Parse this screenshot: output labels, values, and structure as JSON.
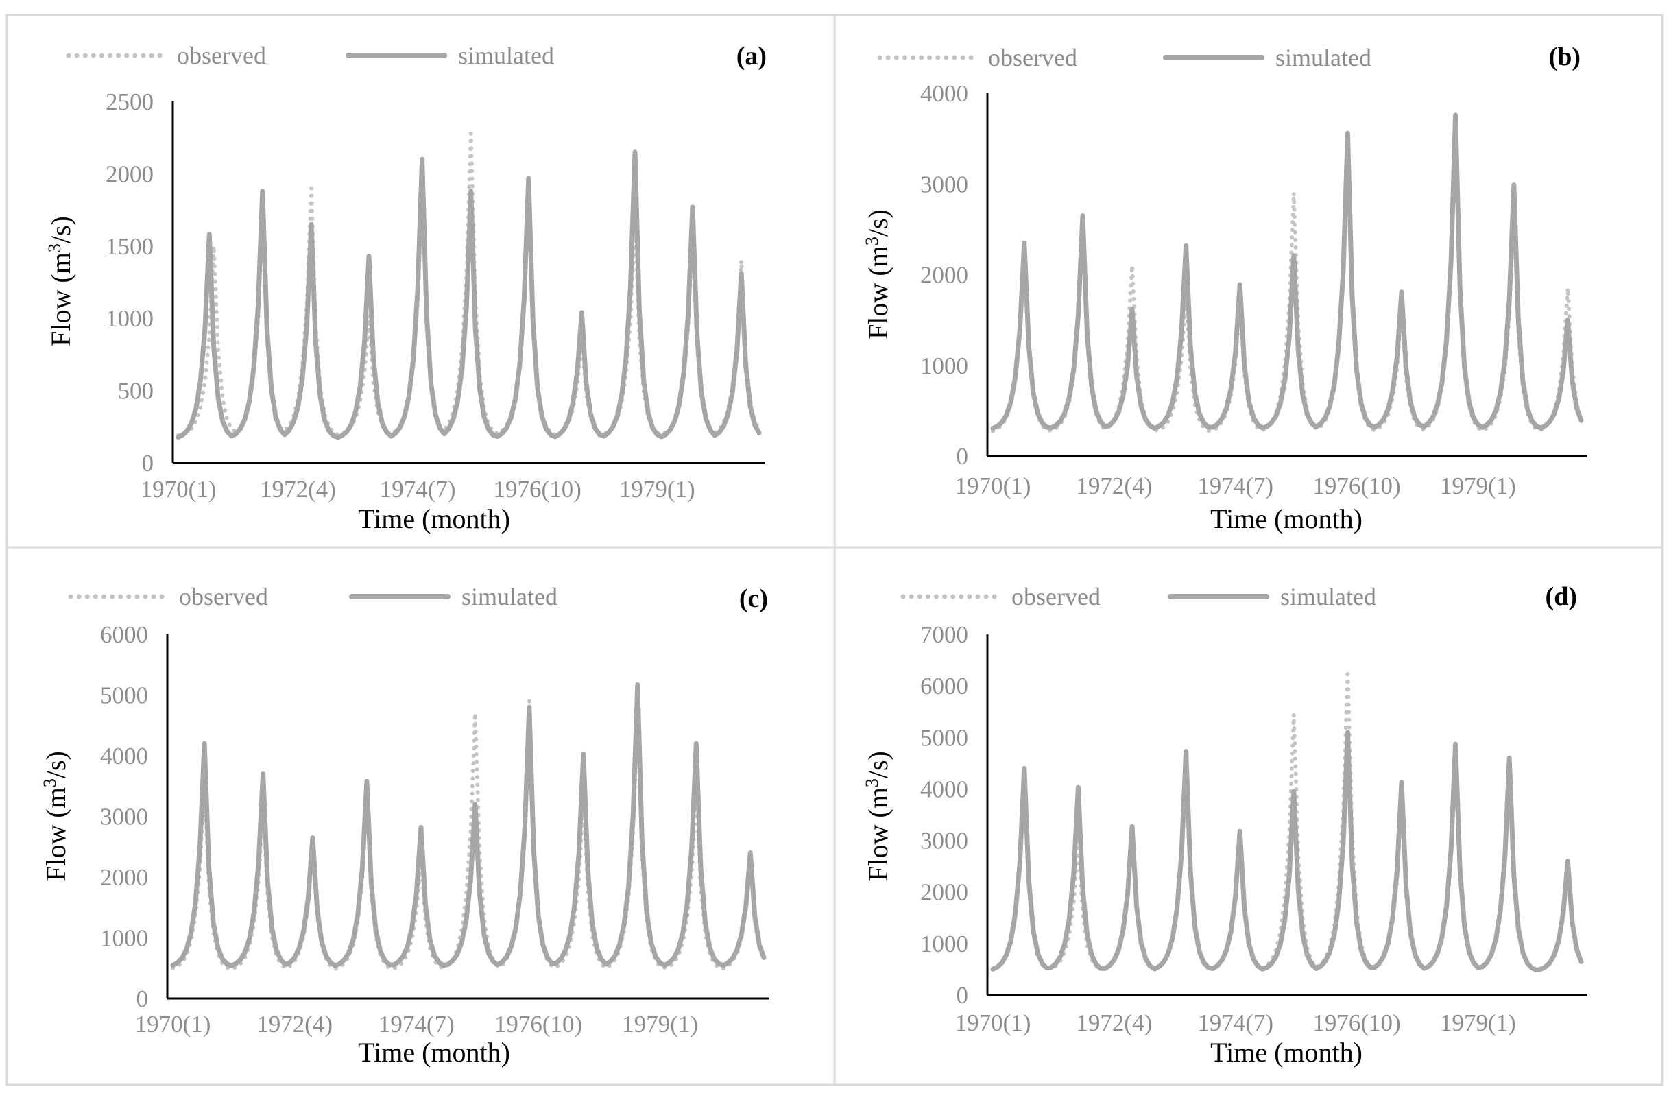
{
  "colors": {
    "observed": "#c4c4c4",
    "simulated": "#a6a6a6",
    "axis": "#000000",
    "tick_text": "#8c8c8c",
    "panel_border": "#d9d9d9"
  },
  "chart_data": [
    {
      "type": "line",
      "panel_label": "(a)",
      "xlabel": "Time (month)",
      "ylabel_prefix": "Flow (m",
      "ylabel_sup": "3",
      "ylabel_suffix": "/s)",
      "ylim": [
        0,
        2500
      ],
      "yticks": [
        0,
        500,
        1000,
        1500,
        2000,
        2500
      ],
      "xtick_labels": [
        "1970(1)",
        "1972(4)",
        "1974(7)",
        "1976(10)",
        "1979(1)"
      ],
      "xtick_indices": [
        0,
        27,
        54,
        81,
        108
      ],
      "n_months": 132,
      "legend": [
        "observed",
        "simulated"
      ],
      "series": [
        {
          "name": "observed",
          "peaks": [
            [
              8,
              1500
            ],
            [
              19,
              1700
            ],
            [
              30,
              1900
            ],
            [
              43,
              1020
            ],
            [
              55,
              1900
            ],
            [
              66,
              2280
            ],
            [
              79,
              1920
            ],
            [
              91,
              850
            ],
            [
              103,
              1700
            ],
            [
              116,
              1600
            ],
            [
              127,
              1400
            ]
          ],
          "base": 180
        },
        {
          "name": "simulated",
          "peaks": [
            [
              7,
              1580
            ],
            [
              19,
              1880
            ],
            [
              30,
              1650
            ],
            [
              43,
              1430
            ],
            [
              55,
              2100
            ],
            [
              66,
              1880
            ],
            [
              79,
              1970
            ],
            [
              91,
              1040
            ],
            [
              103,
              2150
            ],
            [
              116,
              1770
            ],
            [
              127,
              1310
            ]
          ],
          "base": 160
        }
      ]
    },
    {
      "type": "line",
      "panel_label": "(b)",
      "xlabel": "Time (month)",
      "ylabel_prefix": "Flow (m",
      "ylabel_sup": "3",
      "ylabel_suffix": "/s)",
      "ylim": [
        0,
        4000
      ],
      "yticks": [
        0,
        1000,
        2000,
        3000,
        4000
      ],
      "xtick_labels": [
        "1970(1)",
        "1972(4)",
        "1974(7)",
        "1976(10)",
        "1979(1)"
      ],
      "xtick_indices": [
        0,
        27,
        54,
        81,
        108
      ],
      "n_months": 132,
      "legend": [
        "observed",
        "simulated"
      ],
      "series": [
        {
          "name": "observed",
          "peaks": [
            [
              7,
              2300
            ],
            [
              20,
              2500
            ],
            [
              31,
              2100
            ],
            [
              43,
              1800
            ],
            [
              55,
              1700
            ],
            [
              67,
              2900
            ],
            [
              79,
              3500
            ],
            [
              91,
              1600
            ],
            [
              103,
              3600
            ],
            [
              116,
              2700
            ],
            [
              128,
              1850
            ]
          ],
          "base": 250
        },
        {
          "name": "simulated",
          "peaks": [
            [
              7,
              2350
            ],
            [
              20,
              2650
            ],
            [
              31,
              1620
            ],
            [
              43,
              2320
            ],
            [
              55,
              1890
            ],
            [
              67,
              2210
            ],
            [
              79,
              3560
            ],
            [
              91,
              1810
            ],
            [
              103,
              3760
            ],
            [
              116,
              2990
            ],
            [
              128,
              1500
            ]
          ],
          "base": 280
        }
      ]
    },
    {
      "type": "line",
      "panel_label": "(c)",
      "xlabel": "Time (month)",
      "ylabel_prefix": "Flow (m",
      "ylabel_sup": "3",
      "ylabel_suffix": "/s)",
      "ylim": [
        0,
        6000
      ],
      "yticks": [
        0,
        1000,
        2000,
        3000,
        4000,
        5000,
        6000
      ],
      "xtick_labels": [
        "1970(1)",
        "1972(4)",
        "1974(7)",
        "1976(10)",
        "1979(1)"
      ],
      "xtick_indices": [
        0,
        27,
        54,
        81,
        108
      ],
      "n_months": 132,
      "legend": [
        "observed",
        "simulated"
      ],
      "series": [
        {
          "name": "observed",
          "peaks": [
            [
              7,
              3600
            ],
            [
              20,
              3200
            ],
            [
              31,
              2500
            ],
            [
              43,
              3300
            ],
            [
              55,
              2300
            ],
            [
              67,
              4700
            ],
            [
              79,
              4900
            ],
            [
              91,
              3300
            ],
            [
              103,
              4700
            ],
            [
              116,
              3500
            ],
            [
              128,
              2300
            ]
          ],
          "base": 450
        },
        {
          "name": "simulated",
          "peaks": [
            [
              7,
              4200
            ],
            [
              20,
              3700
            ],
            [
              31,
              2650
            ],
            [
              43,
              3580
            ],
            [
              55,
              2820
            ],
            [
              67,
              3200
            ],
            [
              79,
              4800
            ],
            [
              91,
              4030
            ],
            [
              103,
              5170
            ],
            [
              116,
              4200
            ],
            [
              128,
              2400
            ]
          ],
          "base": 500
        }
      ]
    },
    {
      "type": "line",
      "panel_label": "(d)",
      "xlabel": "Time (month)",
      "ylabel_prefix": "Flow (m",
      "ylabel_sup": "3",
      "ylabel_suffix": "/s)",
      "ylim": [
        0,
        7000
      ],
      "yticks": [
        0,
        1000,
        2000,
        3000,
        4000,
        5000,
        6000,
        7000
      ],
      "xtick_labels": [
        "1970(1)",
        "1972(4)",
        "1974(7)",
        "1976(10)",
        "1979(1)"
      ],
      "xtick_indices": [
        0,
        27,
        54,
        81,
        108
      ],
      "n_months": 132,
      "legend": [
        "observed",
        "simulated"
      ],
      "series": [
        {
          "name": "observed",
          "peaks": [
            [
              7,
              4300
            ],
            [
              19,
              3000
            ],
            [
              31,
              3200
            ],
            [
              43,
              4600
            ],
            [
              55,
              3100
            ],
            [
              67,
              5450
            ],
            [
              79,
              6300
            ],
            [
              91,
              3800
            ],
            [
              103,
              4500
            ],
            [
              115,
              4500
            ],
            [
              128,
              2600
            ]
          ],
          "base": 450
        },
        {
          "name": "simulated",
          "peaks": [
            [
              7,
              4400
            ],
            [
              19,
              4030
            ],
            [
              31,
              3270
            ],
            [
              43,
              4730
            ],
            [
              55,
              3180
            ],
            [
              67,
              3950
            ],
            [
              79,
              5100
            ],
            [
              91,
              4130
            ],
            [
              103,
              4870
            ],
            [
              115,
              4600
            ],
            [
              128,
              2600
            ]
          ],
          "base": 450
        }
      ]
    }
  ]
}
